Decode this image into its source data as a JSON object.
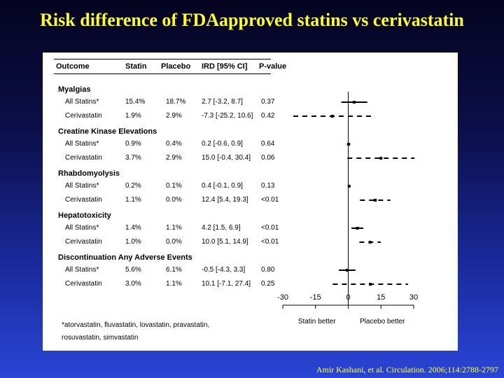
{
  "title": "Risk difference of FDAapproved statins vs cerivastatin",
  "table": {
    "headers": [
      "Outcome",
      "Statin",
      "Placebo",
      "IRD [95% CI]",
      "P-value"
    ],
    "groups": [
      {
        "name": "Myalgias",
        "rows": [
          {
            "label": "All Statins*",
            "statin": "15.4%",
            "placebo": "18.7%",
            "ird": "2.7 [-3.2, 8.7]",
            "p": "0.37"
          },
          {
            "label": "Cerivastatin",
            "statin": "1.9%",
            "placebo": "2.9%",
            "ird": "-7.3 [-25.2, 10.6]",
            "p": "0.42"
          }
        ]
      },
      {
        "name": "Creatine Kinase Elevations",
        "rows": [
          {
            "label": "All Statins*",
            "statin": "0.9%",
            "placebo": "0.4%",
            "ird": "0.2 [-0.6, 0.9]",
            "p": "0.64"
          },
          {
            "label": "Cerivastatin",
            "statin": "3.7%",
            "placebo": "2.9%",
            "ird": "15.0 [-0.4, 30.4]",
            "p": "0.06"
          }
        ]
      },
      {
        "name": "Rhabdomyolysis",
        "rows": [
          {
            "label": "All Statins*",
            "statin": "0.2%",
            "placebo": "0.1%",
            "ird": "0.4 [-0.1, 0.9]",
            "p": "0.13"
          },
          {
            "label": "Cerivastatin",
            "statin": "1.1%",
            "placebo": "0.0%",
            "ird": "12.4 [5.4, 19.3]",
            "p": "<0.01"
          }
        ]
      },
      {
        "name": "Hepatotoxicity",
        "rows": [
          {
            "label": "All Statins*",
            "statin": "1.4%",
            "placebo": "1.1%",
            "ird": "4.2 [1.5, 6.9]",
            "p": "<0.01"
          },
          {
            "label": "Cerivastatin",
            "statin": "1.0%",
            "placebo": "0.0%",
            "ird": "10.0 [5.1, 14.9]",
            "p": "<0.01"
          }
        ]
      },
      {
        "name": "Discontinuation Any Adverse Events",
        "rows": [
          {
            "label": "All Statins*",
            "statin": "5.6%",
            "placebo": "6.1%",
            "ird": "-0.5 [-4.3, 3.3]",
            "p": "0.80"
          },
          {
            "label": "Cerivastatin",
            "statin": "3.0%",
            "placebo": "1.1%",
            "ird": "10.1 [-7.1, 27.4]",
            "p": "0.25"
          }
        ]
      }
    ],
    "footnote_line1": "*atorvastatin, fluvastatin, lovastatin, pravastatin,",
    "footnote_line2": "rosuvastatin, simvastatin"
  },
  "chart_data": {
    "type": "forest",
    "x_ticks": [
      -30,
      -15,
      0,
      15,
      30
    ],
    "xlim": [
      -30,
      30
    ],
    "left_label": "Statin better",
    "right_label": "Placebo better",
    "points": [
      {
        "group": "Myalgias",
        "row": "All Statins*",
        "estimate": 2.7,
        "lower": -3.2,
        "upper": 8.7,
        "style": "solid"
      },
      {
        "group": "Myalgias",
        "row": "Cerivastatin",
        "estimate": -7.3,
        "lower": -25.2,
        "upper": 10.6,
        "style": "dashed"
      },
      {
        "group": "Creatine Kinase Elevations",
        "row": "All Statins*",
        "estimate": 0.2,
        "lower": -0.6,
        "upper": 0.9,
        "style": "solid"
      },
      {
        "group": "Creatine Kinase Elevations",
        "row": "Cerivastatin",
        "estimate": 15.0,
        "lower": -0.4,
        "upper": 30.4,
        "style": "dashed"
      },
      {
        "group": "Rhabdomyolysis",
        "row": "All Statins*",
        "estimate": 0.4,
        "lower": -0.1,
        "upper": 0.9,
        "style": "solid"
      },
      {
        "group": "Rhabdomyolysis",
        "row": "Cerivastatin",
        "estimate": 12.4,
        "lower": 5.4,
        "upper": 19.3,
        "style": "dashed"
      },
      {
        "group": "Hepatotoxicity",
        "row": "All Statins*",
        "estimate": 4.2,
        "lower": 1.5,
        "upper": 6.9,
        "style": "solid"
      },
      {
        "group": "Hepatotoxicity",
        "row": "Cerivastatin",
        "estimate": 10.0,
        "lower": 5.1,
        "upper": 14.9,
        "style": "dashed"
      },
      {
        "group": "Discontinuation Any Adverse Events",
        "row": "All Statins*",
        "estimate": -0.5,
        "lower": -4.3,
        "upper": 3.3,
        "style": "solid"
      },
      {
        "group": "Discontinuation Any Adverse Events",
        "row": "Cerivastatin",
        "estimate": 10.1,
        "lower": -7.1,
        "upper": 27.4,
        "style": "dashed"
      }
    ]
  },
  "citation": "Amir Kashani, et al. Circulation. 2006;114:2788-2797",
  "colors": {
    "title": "#ffff33",
    "citation": "#ffff33",
    "panel_bg": "#ffffff",
    "marks": "#000000"
  }
}
